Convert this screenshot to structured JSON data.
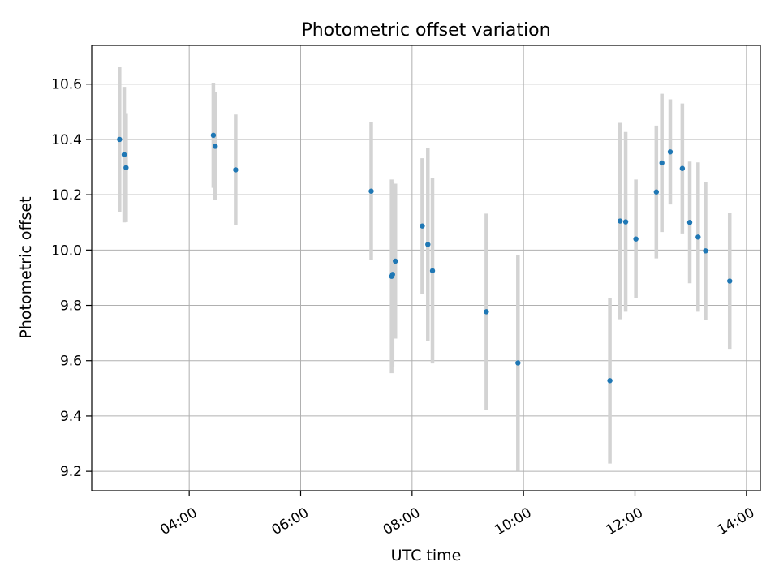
{
  "chart_data": {
    "type": "scatter",
    "title": "Photometric offset variation",
    "xlabel": "UTC time",
    "ylabel": "Photometric offset",
    "x_ticks": [
      "04:00",
      "06:00",
      "08:00",
      "10:00",
      "12:00",
      "14:00"
    ],
    "y_ticks": [
      "9.2",
      "9.4",
      "9.6",
      "9.8",
      "10.0",
      "10.2",
      "10.4",
      "10.6"
    ],
    "xlim": [
      "02:15",
      "14:15"
    ],
    "ylim": [
      9.13,
      10.74
    ],
    "grid": true,
    "point_color": "#1f77b4",
    "errorbar_color": "#d3d3d3",
    "points": [
      {
        "x": "02:45",
        "y": 10.4,
        "err": 0.262
      },
      {
        "x": "02:50",
        "y": 10.345,
        "err": 0.245
      },
      {
        "x": "02:52",
        "y": 10.298,
        "err": 0.197
      },
      {
        "x": "04:26",
        "y": 10.415,
        "err": 0.19
      },
      {
        "x": "04:28",
        "y": 10.375,
        "err": 0.195
      },
      {
        "x": "04:50",
        "y": 10.29,
        "err": 0.2
      },
      {
        "x": "07:16",
        "y": 10.213,
        "err": 0.25
      },
      {
        "x": "07:38",
        "y": 9.905,
        "err": 0.35
      },
      {
        "x": "07:39",
        "y": 9.912,
        "err": 0.335
      },
      {
        "x": "07:42",
        "y": 9.96,
        "err": 0.28
      },
      {
        "x": "08:11",
        "y": 10.087,
        "err": 0.245
      },
      {
        "x": "08:17",
        "y": 10.02,
        "err": 0.35
      },
      {
        "x": "08:22",
        "y": 9.925,
        "err": 0.335
      },
      {
        "x": "09:20",
        "y": 9.777,
        "err": 0.355
      },
      {
        "x": "09:54",
        "y": 9.592,
        "err": 0.39
      },
      {
        "x": "11:33",
        "y": 9.528,
        "err": 0.3
      },
      {
        "x": "11:44",
        "y": 10.105,
        "err": 0.355
      },
      {
        "x": "11:50",
        "y": 10.102,
        "err": 0.325
      },
      {
        "x": "12:01",
        "y": 10.04,
        "err": 0.215
      },
      {
        "x": "12:23",
        "y": 10.21,
        "err": 0.24
      },
      {
        "x": "12:29",
        "y": 10.315,
        "err": 0.25
      },
      {
        "x": "12:38",
        "y": 10.355,
        "err": 0.19
      },
      {
        "x": "12:51",
        "y": 10.295,
        "err": 0.235
      },
      {
        "x": "12:59",
        "y": 10.1,
        "err": 0.22
      },
      {
        "x": "13:08",
        "y": 10.047,
        "err": 0.27
      },
      {
        "x": "13:16",
        "y": 9.997,
        "err": 0.25
      },
      {
        "x": "13:42",
        "y": 9.888,
        "err": 0.245
      }
    ]
  }
}
